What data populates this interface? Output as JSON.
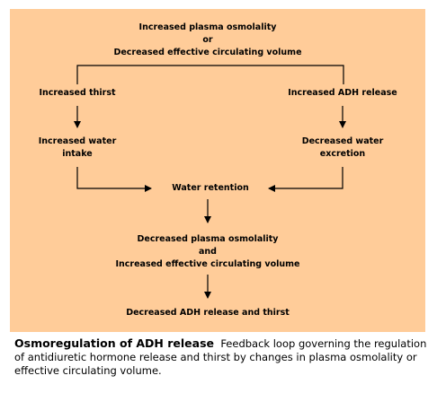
{
  "diagram": {
    "top_line1": "Increased plasma osmolality",
    "top_or": "or",
    "top_line2": "Decreased effective circulating volume",
    "left_1": "Increased thirst",
    "left_2a": "Increased water",
    "left_2b": "intake",
    "right_1": "Increased ADH release",
    "right_2a": "Decreased water",
    "right_2b": "excretion",
    "center": "Water retention",
    "bottom_1a": "Decreased plasma osmolality",
    "bottom_and": "and",
    "bottom_1b": "Increased effective circulating volume",
    "final": "Decreased ADH release and thirst"
  },
  "caption": {
    "title": "Osmoregulation of ADH release",
    "text": "Feedback loop governing the regulation of antidiuretic hormone release and thirst by changes in plasma osmolality or effective circulating volume."
  },
  "colors": {
    "panel": "#ffcc99",
    "text": "#000000"
  }
}
